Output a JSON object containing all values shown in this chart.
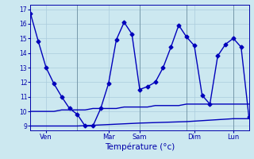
{
  "title": "",
  "xlabel": "Température (°c)",
  "ylabel": "",
  "bg_color": "#cce8f0",
  "grid_color": "#aaccdd",
  "line_color": "#0000bb",
  "ylim": [
    8.7,
    17.3
  ],
  "xlim": [
    0,
    28
  ],
  "yticks": [
    9,
    10,
    11,
    12,
    13,
    14,
    15,
    16,
    17
  ],
  "xtick_positions": [
    2,
    10,
    14,
    21,
    26
  ],
  "xtick_labels": [
    "Ven",
    "Mar",
    "Sam",
    "Dim",
    "Lun"
  ],
  "vline_positions": [
    6,
    14,
    20,
    26
  ],
  "line1_x": [
    0,
    1,
    2,
    3,
    4,
    5,
    6,
    7,
    8,
    9,
    10,
    11,
    12,
    13,
    14,
    15,
    16,
    17,
    18,
    19,
    20,
    21,
    22,
    23,
    24,
    25,
    26,
    27,
    28
  ],
  "line1_y": [
    16.7,
    14.8,
    13.0,
    11.9,
    11.0,
    10.2,
    9.8,
    9.0,
    9.0,
    10.2,
    11.9,
    14.9,
    16.1,
    15.3,
    11.5,
    11.7,
    12.0,
    13.0,
    14.4,
    15.9,
    15.1,
    14.5,
    11.1,
    10.5,
    13.8,
    14.6,
    15.0,
    14.4,
    9.6
  ],
  "line2_x": [
    0,
    1,
    2,
    3,
    4,
    5,
    6,
    7,
    8,
    9,
    10,
    11,
    12,
    13,
    14,
    15,
    16,
    17,
    18,
    19,
    20,
    21,
    22,
    23,
    24,
    25,
    26,
    27,
    28
  ],
  "line2_y": [
    10.0,
    10.0,
    10.0,
    10.0,
    10.1,
    10.1,
    10.1,
    10.1,
    10.2,
    10.2,
    10.2,
    10.2,
    10.3,
    10.3,
    10.3,
    10.3,
    10.4,
    10.4,
    10.4,
    10.4,
    10.5,
    10.5,
    10.5,
    10.5,
    10.5,
    10.5,
    10.5,
    10.5,
    10.5
  ],
  "line3_x": [
    0,
    6,
    14,
    20,
    26,
    28
  ],
  "line3_y": [
    9.0,
    9.0,
    9.2,
    9.3,
    9.5,
    9.5
  ],
  "marker_style": "D",
  "marker_size": 2.5,
  "line_width": 1.0
}
